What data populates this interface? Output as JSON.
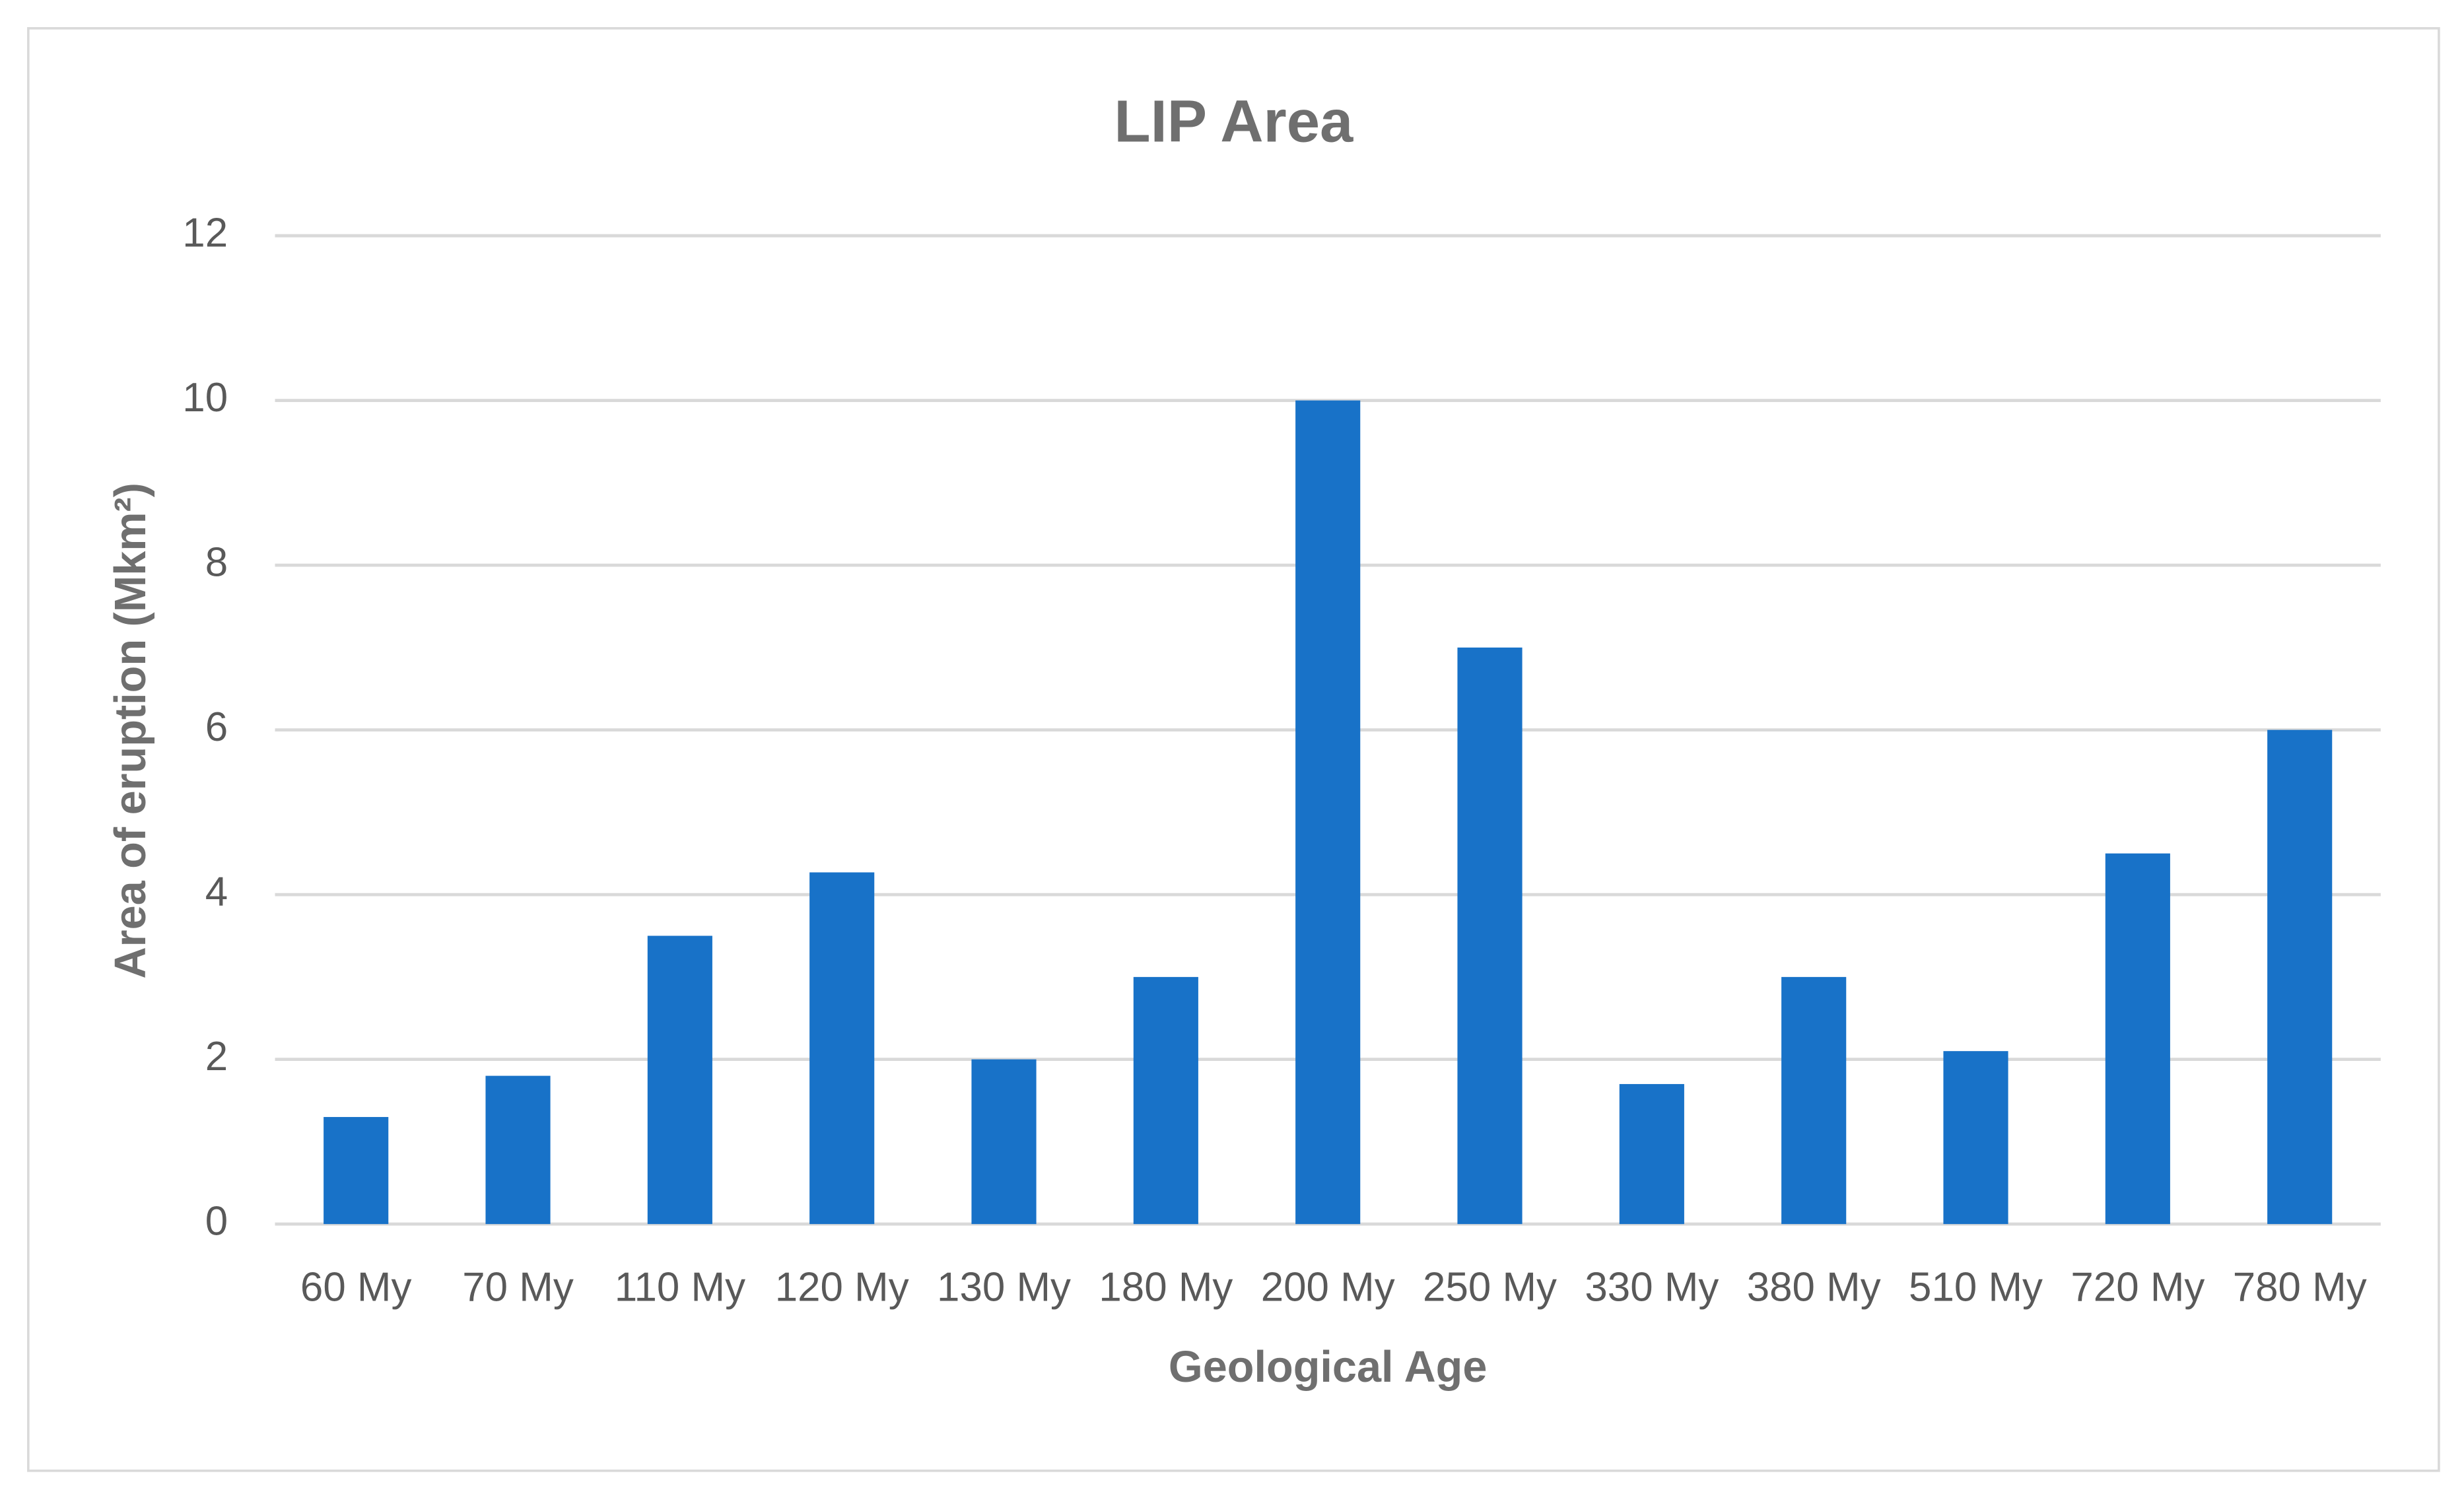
{
  "chart_data": {
    "type": "bar",
    "title": "LIP Area",
    "x_label": "Geological Age",
    "y_label": "Area of eruption (Mkm²)",
    "categories": [
      "60 My",
      "70 My",
      "110 My",
      "120 My",
      "130 My",
      "180 My",
      "200 My",
      "250 My",
      "330 My",
      "380 My",
      "510 My",
      "720 My",
      "780 My"
    ],
    "values": [
      1.3,
      1.8,
      3.5,
      4.27,
      2,
      3,
      10,
      7,
      1.7,
      3,
      2.1,
      4.5,
      6
    ],
    "color": "#1872c8",
    "ylim": [
      0,
      12
    ],
    "yticks": [
      0,
      2,
      4,
      6,
      8,
      10,
      12
    ],
    "grid": true
  }
}
